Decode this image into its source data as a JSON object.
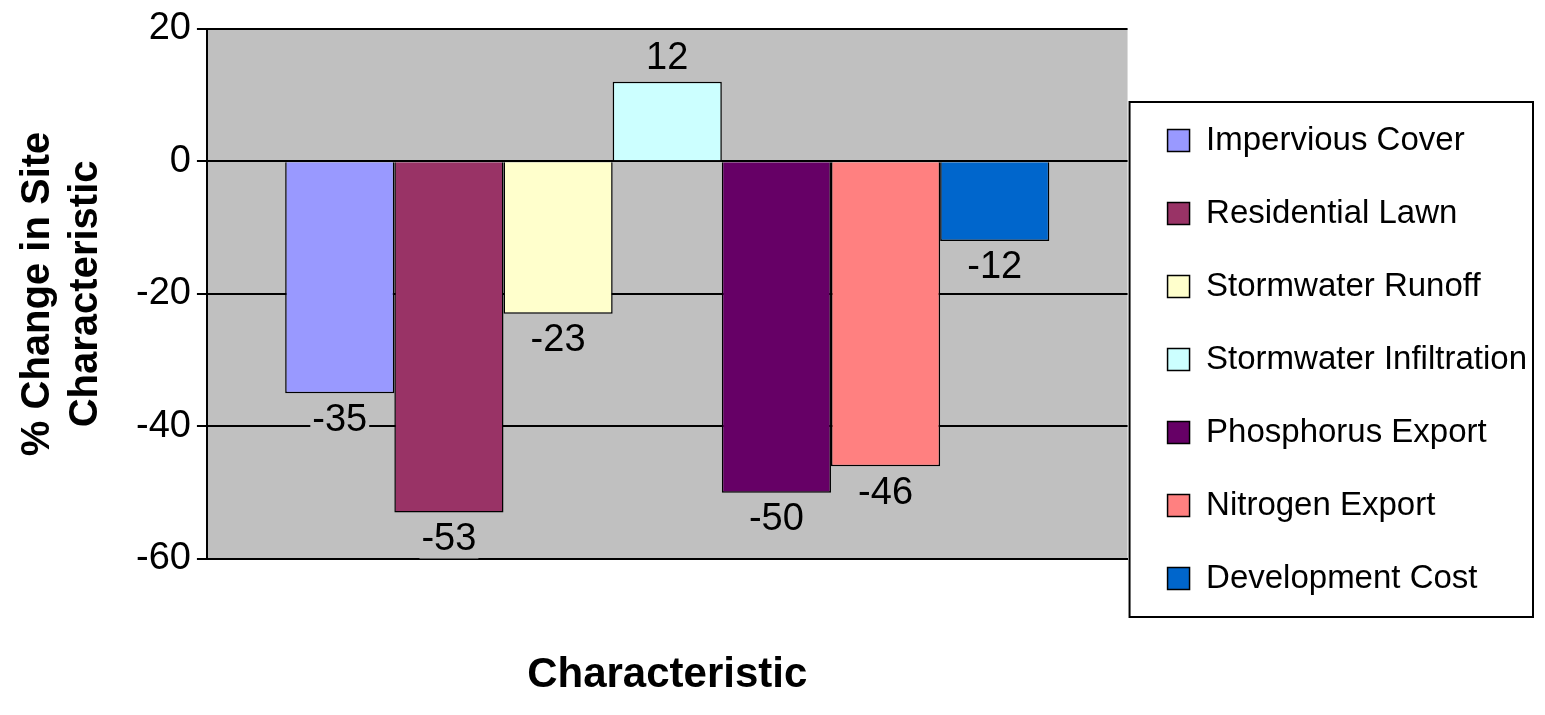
{
  "chart_data": {
    "type": "bar",
    "xlabel": "Characteristic",
    "ylabel": "% Change in Site Characteristic",
    "categories": [
      null
    ],
    "series": [
      {
        "name": "Impervious Cover",
        "color": "#9999ff",
        "values": [
          -35
        ]
      },
      {
        "name": "Residential Lawn",
        "color": "#993366",
        "values": [
          -53
        ]
      },
      {
        "name": "Stormwater Runoff",
        "color": "#ffffcc",
        "values": [
          -23
        ]
      },
      {
        "name": "Stormwater Infiltration",
        "color": "#ccffff",
        "values": [
          12
        ]
      },
      {
        "name": "Phosphorus Export",
        "color": "#660066",
        "values": [
          -50
        ]
      },
      {
        "name": "Nitrogen Export",
        "color": "#ff8080",
        "values": [
          -46
        ]
      },
      {
        "name": "Development Cost",
        "color": "#0066cc",
        "values": [
          -12
        ]
      }
    ],
    "ylim": [
      -60,
      20
    ],
    "yticks": [
      -60,
      -40,
      -20,
      0,
      20
    ],
    "grid": "y",
    "legend": "right",
    "data_labels": true
  }
}
